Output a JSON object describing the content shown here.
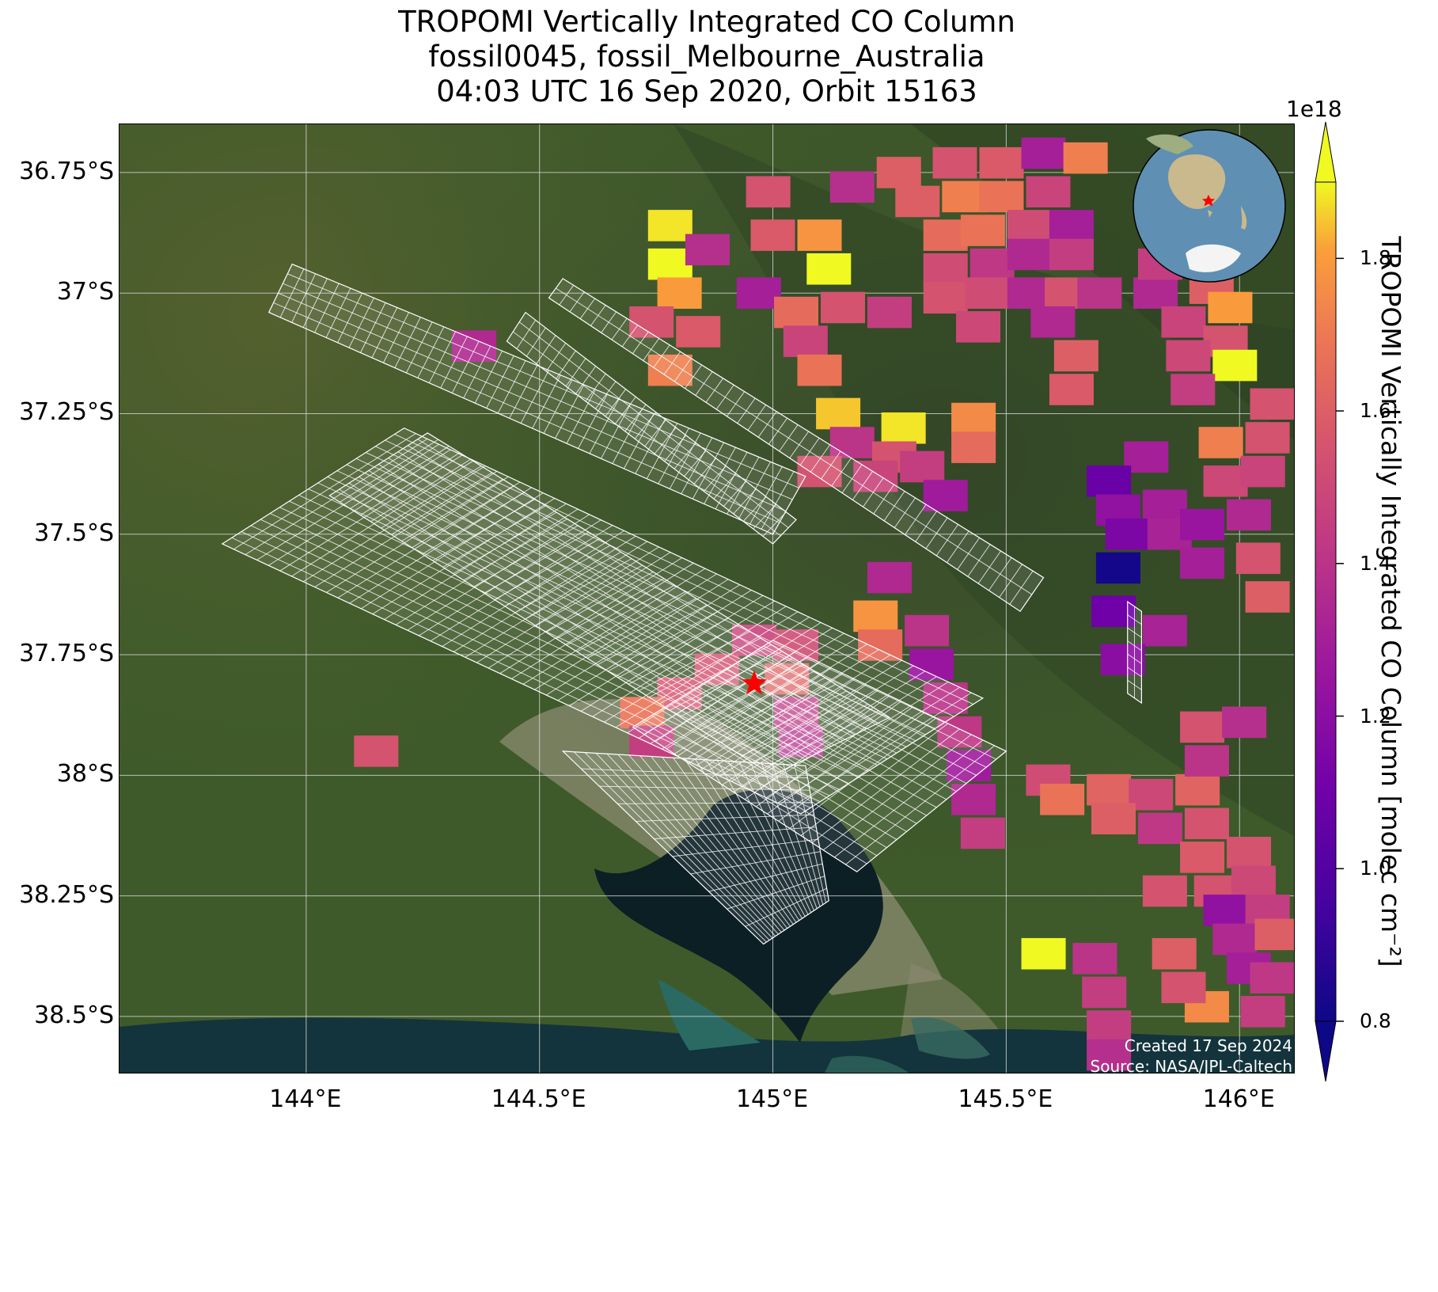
{
  "title": {
    "line1": "TROPOMI Vertically Integrated CO Column",
    "line2": "fossil0045, fossil_Melbourne_Australia",
    "line3": "04:03 UTC 16 Sep 2020, Orbit 15163"
  },
  "map": {
    "extent": {
      "lon_min": 143.6,
      "lon_max": 146.12,
      "lat_min": -38.62,
      "lat_max": -36.65
    },
    "lat_ticks": [
      {
        "value": -36.75,
        "label": "36.75°S"
      },
      {
        "value": -37.0,
        "label": "37°S"
      },
      {
        "value": -37.25,
        "label": "37.25°S"
      },
      {
        "value": -37.5,
        "label": "37.5°S"
      },
      {
        "value": -37.75,
        "label": "37.75°S"
      },
      {
        "value": -38.0,
        "label": "38°S"
      },
      {
        "value": -38.25,
        "label": "38.25°S"
      },
      {
        "value": -38.5,
        "label": "38.5°S"
      }
    ],
    "lon_ticks": [
      {
        "value": 144.0,
        "label": "144°E"
      },
      {
        "value": 144.5,
        "label": "144.5°E"
      },
      {
        "value": 145.0,
        "label": "145°E"
      },
      {
        "value": 145.5,
        "label": "145.5°E"
      },
      {
        "value": 146.0,
        "label": "146°E"
      }
    ],
    "grid": true,
    "basemap": "satellite imagery",
    "target_marker": {
      "lon": 144.96,
      "lat": -37.81,
      "symbol": "star",
      "color": "#ff0000"
    },
    "sam_grids": [
      {
        "corners": [
          [
            143.92,
            -37.04
          ],
          [
            143.97,
            -36.94
          ],
          [
            145.07,
            -37.38
          ],
          [
            145.0,
            -37.5
          ]
        ]
      },
      {
        "corners": [
          [
            143.82,
            -37.52
          ],
          [
            144.21,
            -37.28
          ],
          [
            145.45,
            -37.84
          ],
          [
            145.06,
            -38.08
          ]
        ]
      },
      {
        "corners": [
          [
            144.05,
            -37.42
          ],
          [
            144.26,
            -37.29
          ],
          [
            145.25,
            -37.88
          ],
          [
            145.0,
            -38.0
          ]
        ]
      },
      {
        "corners": [
          [
            144.43,
            -37.1
          ],
          [
            144.47,
            -37.04
          ],
          [
            145.05,
            -37.47
          ],
          [
            145.0,
            -37.52
          ]
        ]
      },
      {
        "corners": [
          [
            144.52,
            -37.01
          ],
          [
            144.55,
            -36.97
          ],
          [
            145.58,
            -37.59
          ],
          [
            145.53,
            -37.66
          ]
        ]
      },
      {
        "corners": [
          [
            144.55,
            -37.95
          ],
          [
            145.07,
            -37.98
          ],
          [
            145.12,
            -38.26
          ],
          [
            144.98,
            -38.35
          ]
        ]
      },
      {
        "corners": [
          [
            144.7,
            -37.9
          ],
          [
            145.0,
            -37.72
          ],
          [
            145.5,
            -37.95
          ],
          [
            145.18,
            -38.2
          ]
        ]
      },
      {
        "corners": [
          [
            145.76,
            -37.64
          ],
          [
            145.79,
            -37.66
          ],
          [
            145.79,
            -37.85
          ],
          [
            145.76,
            -37.83
          ]
        ]
      }
    ]
  },
  "co_pixels": [
    {
      "lon": 144.96,
      "lat": -37.72,
      "v": 1.48
    },
    {
      "lon": 145.05,
      "lat": -37.73,
      "v": 1.52
    },
    {
      "lon": 144.88,
      "lat": -37.78,
      "v": 1.55
    },
    {
      "lon": 145.03,
      "lat": -37.8,
      "v": 1.62
    },
    {
      "lon": 144.8,
      "lat": -37.83,
      "v": 1.55
    },
    {
      "lon": 144.72,
      "lat": -37.87,
      "v": 1.68
    },
    {
      "lon": 144.74,
      "lat": -37.93,
      "v": 1.45
    },
    {
      "lon": 145.05,
      "lat": -37.87,
      "v": 1.42
    },
    {
      "lon": 145.06,
      "lat": -37.93,
      "v": 1.38
    },
    {
      "lon": 144.15,
      "lat": -37.95,
      "v": 1.55
    },
    {
      "lon": 144.36,
      "lat": -37.11,
      "v": 1.35
    },
    {
      "lon": 144.78,
      "lat": -36.86,
      "v": 1.88
    },
    {
      "lon": 144.78,
      "lat": -36.94,
      "v": 1.98
    },
    {
      "lon": 144.8,
      "lat": -37.0,
      "v": 1.8
    },
    {
      "lon": 144.86,
      "lat": -36.91,
      "v": 1.38
    },
    {
      "lon": 144.74,
      "lat": -37.06,
      "v": 1.55
    },
    {
      "lon": 144.84,
      "lat": -37.08,
      "v": 1.58
    },
    {
      "lon": 144.78,
      "lat": -37.16,
      "v": 1.72
    },
    {
      "lon": 144.97,
      "lat": -37.0,
      "v": 1.3
    },
    {
      "lon": 144.99,
      "lat": -36.79,
      "v": 1.55
    },
    {
      "lon": 145.0,
      "lat": -36.88,
      "v": 1.58
    },
    {
      "lon": 145.1,
      "lat": -36.88,
      "v": 1.78
    },
    {
      "lon": 145.12,
      "lat": -36.95,
      "v": 1.9
    },
    {
      "lon": 145.05,
      "lat": -37.04,
      "v": 1.65
    },
    {
      "lon": 145.15,
      "lat": -37.03,
      "v": 1.55
    },
    {
      "lon": 145.25,
      "lat": -37.04,
      "v": 1.45
    },
    {
      "lon": 145.07,
      "lat": -37.1,
      "v": 1.48
    },
    {
      "lon": 145.1,
      "lat": -37.16,
      "v": 1.68
    },
    {
      "lon": 145.14,
      "lat": -37.25,
      "v": 1.85
    },
    {
      "lon": 145.17,
      "lat": -37.31,
      "v": 1.4
    },
    {
      "lon": 145.28,
      "lat": -37.28,
      "v": 1.88
    },
    {
      "lon": 145.26,
      "lat": -37.34,
      "v": 1.55
    },
    {
      "lon": 145.1,
      "lat": -37.37,
      "v": 1.55
    },
    {
      "lon": 145.22,
      "lat": -37.38,
      "v": 1.48
    },
    {
      "lon": 145.32,
      "lat": -37.36,
      "v": 1.45
    },
    {
      "lon": 145.37,
      "lat": -37.42,
      "v": 1.28
    },
    {
      "lon": 145.17,
      "lat": -36.78,
      "v": 1.38
    },
    {
      "lon": 145.27,
      "lat": -36.75,
      "v": 1.6
    },
    {
      "lon": 145.39,
      "lat": -36.73,
      "v": 1.55
    },
    {
      "lon": 145.49,
      "lat": -36.73,
      "v": 1.58
    },
    {
      "lon": 145.58,
      "lat": -36.71,
      "v": 1.3
    },
    {
      "lon": 145.67,
      "lat": -36.72,
      "v": 1.72
    },
    {
      "lon": 145.31,
      "lat": -36.81,
      "v": 1.6
    },
    {
      "lon": 145.41,
      "lat": -36.8,
      "v": 1.72
    },
    {
      "lon": 145.49,
      "lat": -36.8,
      "v": 1.68
    },
    {
      "lon": 145.59,
      "lat": -36.79,
      "v": 1.48
    },
    {
      "lon": 145.37,
      "lat": -36.88,
      "v": 1.65
    },
    {
      "lon": 145.45,
      "lat": -36.87,
      "v": 1.68
    },
    {
      "lon": 145.55,
      "lat": -36.86,
      "v": 1.52
    },
    {
      "lon": 145.64,
      "lat": -36.86,
      "v": 1.3
    },
    {
      "lon": 145.37,
      "lat": -36.95,
      "v": 1.52
    },
    {
      "lon": 145.47,
      "lat": -36.94,
      "v": 1.42
    },
    {
      "lon": 145.55,
      "lat": -36.92,
      "v": 1.35
    },
    {
      "lon": 145.64,
      "lat": -36.92,
      "v": 1.45
    },
    {
      "lon": 145.37,
      "lat": -37.01,
      "v": 1.55
    },
    {
      "lon": 145.46,
      "lat": -37.0,
      "v": 1.52
    },
    {
      "lon": 145.55,
      "lat": -37.0,
      "v": 1.35
    },
    {
      "lon": 145.63,
      "lat": -37.0,
      "v": 1.55
    },
    {
      "lon": 145.7,
      "lat": -37.0,
      "v": 1.4
    },
    {
      "lon": 145.6,
      "lat": -37.06,
      "v": 1.35
    },
    {
      "lon": 145.65,
      "lat": -37.13,
      "v": 1.6
    },
    {
      "lon": 145.64,
      "lat": -37.2,
      "v": 1.58
    },
    {
      "lon": 145.44,
      "lat": -37.07,
      "v": 1.5
    },
    {
      "lon": 145.43,
      "lat": -37.26,
      "v": 1.75
    },
    {
      "lon": 145.43,
      "lat": -37.32,
      "v": 1.65
    },
    {
      "lon": 145.82,
      "lat": -37.0,
      "v": 1.35
    },
    {
      "lon": 145.83,
      "lat": -36.94,
      "v": 1.45
    },
    {
      "lon": 145.94,
      "lat": -36.99,
      "v": 1.6
    },
    {
      "lon": 145.98,
      "lat": -37.03,
      "v": 1.8
    },
    {
      "lon": 145.88,
      "lat": -37.06,
      "v": 1.48
    },
    {
      "lon": 145.97,
      "lat": -37.1,
      "v": 1.55
    },
    {
      "lon": 145.89,
      "lat": -37.13,
      "v": 1.5
    },
    {
      "lon": 145.99,
      "lat": -37.15,
      "v": 1.9
    },
    {
      "lon": 145.9,
      "lat": -37.2,
      "v": 1.45
    },
    {
      "lon": 146.07,
      "lat": -37.23,
      "v": 1.55
    },
    {
      "lon": 145.96,
      "lat": -37.31,
      "v": 1.72
    },
    {
      "lon": 146.06,
      "lat": -37.3,
      "v": 1.55
    },
    {
      "lon": 145.97,
      "lat": -37.39,
      "v": 1.5
    },
    {
      "lon": 146.05,
      "lat": -37.37,
      "v": 1.48
    },
    {
      "lon": 145.8,
      "lat": -37.34,
      "v": 1.3
    },
    {
      "lon": 145.72,
      "lat": -37.39,
      "v": 1.08
    },
    {
      "lon": 145.74,
      "lat": -37.45,
      "v": 1.22
    },
    {
      "lon": 145.84,
      "lat": -37.44,
      "v": 1.3
    },
    {
      "lon": 145.76,
      "lat": -37.5,
      "v": 1.15
    },
    {
      "lon": 145.85,
      "lat": -37.5,
      "v": 1.32
    },
    {
      "lon": 145.92,
      "lat": -37.48,
      "v": 1.25
    },
    {
      "lon": 146.02,
      "lat": -37.46,
      "v": 1.35
    },
    {
      "lon": 145.74,
      "lat": -37.57,
      "v": 0.82
    },
    {
      "lon": 145.92,
      "lat": -37.56,
      "v": 1.3
    },
    {
      "lon": 146.04,
      "lat": -37.55,
      "v": 1.55
    },
    {
      "lon": 146.06,
      "lat": -37.63,
      "v": 1.6
    },
    {
      "lon": 145.73,
      "lat": -37.66,
      "v": 1.1
    },
    {
      "lon": 145.84,
      "lat": -37.7,
      "v": 1.32
    },
    {
      "lon": 145.75,
      "lat": -37.76,
      "v": 1.2
    },
    {
      "lon": 145.25,
      "lat": -37.59,
      "v": 1.35
    },
    {
      "lon": 145.22,
      "lat": -37.67,
      "v": 1.78
    },
    {
      "lon": 145.23,
      "lat": -37.73,
      "v": 1.65
    },
    {
      "lon": 145.33,
      "lat": -37.7,
      "v": 1.4
    },
    {
      "lon": 145.34,
      "lat": -37.77,
      "v": 1.25
    },
    {
      "lon": 145.37,
      "lat": -37.84,
      "v": 1.4
    },
    {
      "lon": 145.4,
      "lat": -37.91,
      "v": 1.42
    },
    {
      "lon": 145.42,
      "lat": -37.98,
      "v": 1.28
    },
    {
      "lon": 145.43,
      "lat": -38.05,
      "v": 1.35
    },
    {
      "lon": 145.45,
      "lat": -38.12,
      "v": 1.45
    },
    {
      "lon": 145.59,
      "lat": -38.01,
      "v": 1.52
    },
    {
      "lon": 145.62,
      "lat": -38.05,
      "v": 1.68
    },
    {
      "lon": 145.72,
      "lat": -38.03,
      "v": 1.62
    },
    {
      "lon": 145.81,
      "lat": -38.04,
      "v": 1.5
    },
    {
      "lon": 145.91,
      "lat": -38.03,
      "v": 1.62
    },
    {
      "lon": 145.73,
      "lat": -38.09,
      "v": 1.6
    },
    {
      "lon": 145.83,
      "lat": -38.11,
      "v": 1.42
    },
    {
      "lon": 145.93,
      "lat": -38.1,
      "v": 1.55
    },
    {
      "lon": 145.92,
      "lat": -37.9,
      "v": 1.55
    },
    {
      "lon": 146.01,
      "lat": -37.89,
      "v": 1.38
    },
    {
      "lon": 145.93,
      "lat": -37.97,
      "v": 1.4
    },
    {
      "lon": 145.92,
      "lat": -38.17,
      "v": 1.58
    },
    {
      "lon": 146.02,
      "lat": -38.16,
      "v": 1.55
    },
    {
      "lon": 145.95,
      "lat": -38.24,
      "v": 1.55
    },
    {
      "lon": 146.03,
      "lat": -38.22,
      "v": 1.5
    },
    {
      "lon": 145.84,
      "lat": -38.24,
      "v": 1.55
    },
    {
      "lon": 145.97,
      "lat": -38.28,
      "v": 1.22
    },
    {
      "lon": 146.06,
      "lat": -38.28,
      "v": 1.45
    },
    {
      "lon": 145.99,
      "lat": -38.34,
      "v": 1.35
    },
    {
      "lon": 146.08,
      "lat": -38.33,
      "v": 1.6
    },
    {
      "lon": 146.02,
      "lat": -38.4,
      "v": 1.3
    },
    {
      "lon": 146.07,
      "lat": -38.42,
      "v": 1.42
    },
    {
      "lon": 145.93,
      "lat": -38.48,
      "v": 1.75
    },
    {
      "lon": 146.05,
      "lat": -38.49,
      "v": 1.45
    },
    {
      "lon": 145.86,
      "lat": -38.37,
      "v": 1.6
    },
    {
      "lon": 145.88,
      "lat": -38.44,
      "v": 1.55
    },
    {
      "lon": 145.58,
      "lat": -38.37,
      "v": 1.98
    },
    {
      "lon": 145.69,
      "lat": -38.38,
      "v": 1.4
    },
    {
      "lon": 145.71,
      "lat": -38.45,
      "v": 1.45
    },
    {
      "lon": 145.72,
      "lat": -38.52,
      "v": 1.45
    },
    {
      "lon": 145.72,
      "lat": -38.58,
      "v": 1.38
    }
  ],
  "colorbar": {
    "colormap": "plasma",
    "vmin": 0.8,
    "vmax": 1.9,
    "exponent_label": "1e18",
    "ticks": [
      {
        "value": 0.8,
        "label": "0.8"
      },
      {
        "value": 1.0,
        "label": "1.0"
      },
      {
        "value": 1.2,
        "label": "1.2"
      },
      {
        "value": 1.4,
        "label": "1.4"
      },
      {
        "value": 1.6,
        "label": "1.6"
      },
      {
        "value": 1.8,
        "label": "1.8"
      }
    ],
    "label": "TROPOMI Vertically Integrated CO Column [molec cm⁻²]",
    "extend": "both"
  },
  "credits": {
    "created": "Created 17 Sep 2024",
    "source": "Source: NASA/JPL-Caltech"
  },
  "inset": {
    "type": "orthographic globe",
    "center": "Australia",
    "marker_color": "#ff0000"
  }
}
